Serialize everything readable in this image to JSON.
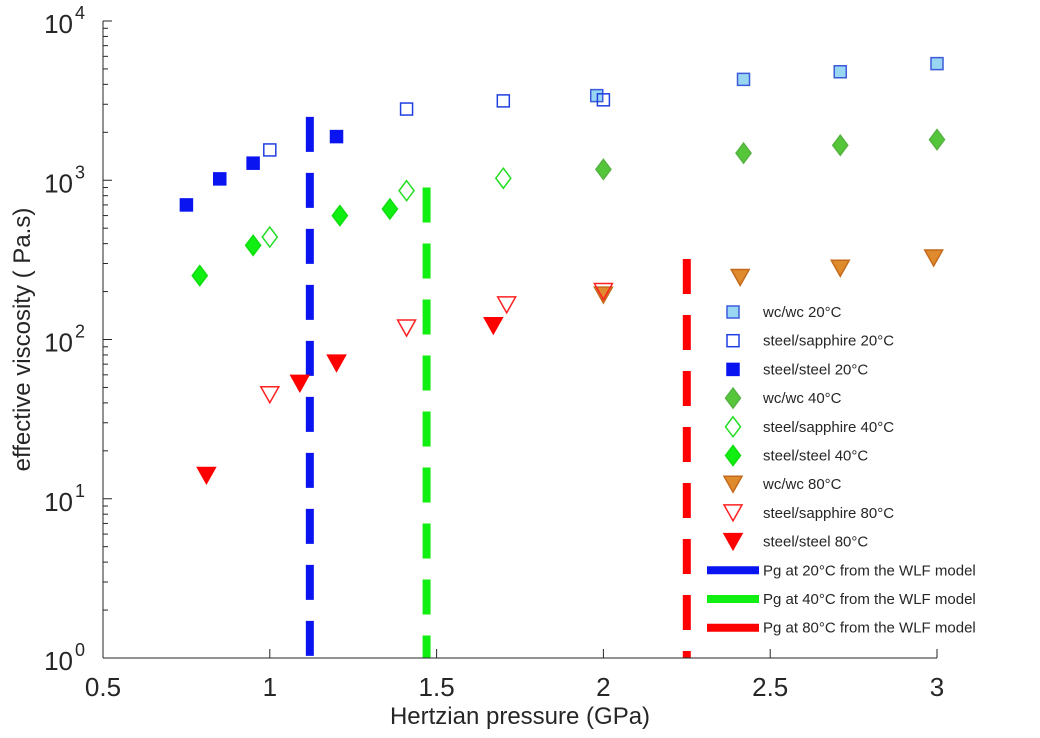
{
  "chart_data": {
    "type": "scatter",
    "title": "",
    "xlabel": "Hertzian pressure (GPa)",
    "ylabel": "effective viscosity ( Pa.s)",
    "xlim": [
      0.5,
      3
    ],
    "ylim": [
      1,
      10000
    ],
    "yscale": "log",
    "grid": false,
    "legend_position": "bottom-right",
    "x_ticks": [
      {
        "value": 0.5,
        "label": "0.5"
      },
      {
        "value": 1,
        "label": "1"
      },
      {
        "value": 1.5,
        "label": "1.5"
      },
      {
        "value": 2,
        "label": "2"
      },
      {
        "value": 2.5,
        "label": "2.5"
      },
      {
        "value": 3,
        "label": "3"
      }
    ],
    "y_ticks": [
      {
        "value": 1,
        "base": "10",
        "exp": "0"
      },
      {
        "value": 10,
        "base": "10",
        "exp": "1"
      },
      {
        "value": 100,
        "base": "10",
        "exp": "2"
      },
      {
        "value": 1000,
        "base": "10",
        "exp": "3"
      },
      {
        "value": 10000,
        "base": "10",
        "exp": "4"
      }
    ],
    "series": [
      {
        "name": "wc/wc 20°C",
        "marker": "square-filled-light",
        "color": "#3b5bdb",
        "fill": "#99d6f2",
        "points": [
          [
            1.98,
            3400
          ],
          [
            2.42,
            4300
          ],
          [
            2.71,
            4800
          ],
          [
            3.0,
            5400
          ]
        ]
      },
      {
        "name": "steel/sapphire 20°C",
        "marker": "square-open",
        "color": "#1f3fe0",
        "fill": "none",
        "points": [
          [
            1.0,
            1550
          ],
          [
            1.41,
            2800
          ],
          [
            1.7,
            3150
          ],
          [
            2.0,
            3200
          ]
        ]
      },
      {
        "name": "steel/steel 20°C",
        "marker": "square-filled",
        "color": "#0a14f0",
        "fill": "#0a14f0",
        "points": [
          [
            0.75,
            700
          ],
          [
            0.85,
            1020
          ],
          [
            0.95,
            1280
          ],
          [
            1.2,
            1880
          ]
        ]
      },
      {
        "name": "wc/wc 40°C",
        "marker": "diamond-filled",
        "color": "#56b342",
        "fill": "#55c53a",
        "points": [
          [
            2.0,
            1170
          ],
          [
            2.42,
            1480
          ],
          [
            2.71,
            1660
          ],
          [
            3.0,
            1800
          ]
        ]
      },
      {
        "name": "steel/sapphire 40°C",
        "marker": "diamond-open",
        "color": "#22dd22",
        "fill": "none",
        "points": [
          [
            1.0,
            440
          ],
          [
            1.41,
            860
          ],
          [
            1.7,
            1030
          ]
        ]
      },
      {
        "name": "steel/steel 40°C",
        "marker": "diamond-filled",
        "color": "#11dd11",
        "fill": "#11ee11",
        "points": [
          [
            0.79,
            252
          ],
          [
            0.95,
            390
          ],
          [
            1.21,
            600
          ],
          [
            1.36,
            660
          ]
        ]
      },
      {
        "name": "wc/wc 80°C",
        "marker": "triangle-down-filled",
        "color": "#c46a1c",
        "fill": "#e08a2e",
        "points": [
          [
            2.0,
            190
          ],
          [
            2.41,
            245
          ],
          [
            2.71,
            280
          ],
          [
            2.99,
            325
          ]
        ]
      },
      {
        "name": "steel/sapphire 80°C",
        "marker": "triangle-down-open",
        "color": "#ff2020",
        "fill": "none",
        "points": [
          [
            1.0,
            45
          ],
          [
            1.41,
            118
          ],
          [
            1.71,
            165
          ],
          [
            2.0,
            200
          ]
        ]
      },
      {
        "name": "steel/steel 80°C",
        "marker": "triangle-down-filled",
        "color": "#ff0000",
        "fill": "#ff0000",
        "points": [
          [
            0.81,
            14
          ],
          [
            1.09,
            53
          ],
          [
            1.2,
            71
          ],
          [
            1.67,
            122
          ]
        ]
      }
    ],
    "vertical_lines": [
      {
        "name": "Pg at 20°C from the WLF model",
        "x": 1.12,
        "y_range": [
          1,
          2500
        ],
        "color": "#0a14f0",
        "style": "dashed"
      },
      {
        "name": "Pg at 40°C from the WLF model",
        "x": 1.47,
        "y_range": [
          1,
          900
        ],
        "color": "#11ee11",
        "style": "dashed"
      },
      {
        "name": "Pg at 80°C from the WLF model",
        "x": 2.25,
        "y_range": [
          1,
          320
        ],
        "color": "#ff0000",
        "style": "dashed"
      }
    ]
  }
}
